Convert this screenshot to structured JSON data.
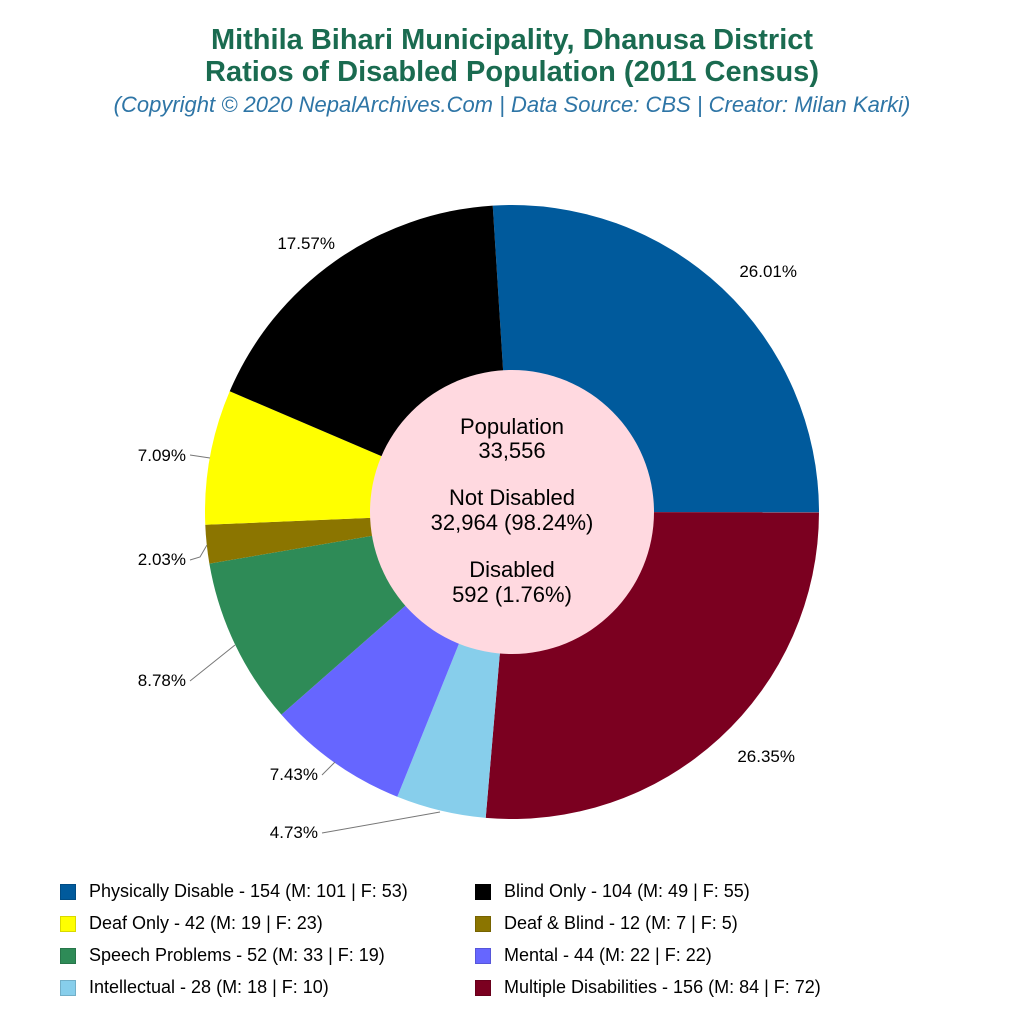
{
  "header": {
    "title_line1": "Mithila Bihari Municipality, Dhanusa District",
    "title_line2": "Ratios of Disabled Population (2011 Census)",
    "subtitle": "(Copyright © 2020 NepalArchives.Com | Data Source: CBS | Creator: Milan Karki)"
  },
  "center": {
    "population_label": "Population",
    "population_value": "33,556",
    "not_disabled_label": "Not Disabled",
    "not_disabled_value": "32,964 (98.24%)",
    "disabled_label": "Disabled",
    "disabled_value": "592 (1.76%)"
  },
  "slices": [
    {
      "name": "Physically Disable",
      "value": 154,
      "pct": "26.01%",
      "color": "#005a9c"
    },
    {
      "name": "Multiple Disabilities",
      "value": 156,
      "pct": "26.35%",
      "color": "#7b0020"
    },
    {
      "name": "Intellectual",
      "value": 28,
      "pct": "4.73%",
      "color": "#87ceeb"
    },
    {
      "name": "Mental",
      "value": 44,
      "pct": "7.43%",
      "color": "#6666ff"
    },
    {
      "name": "Speech Problems",
      "value": 52,
      "pct": "8.78%",
      "color": "#2e8b57"
    },
    {
      "name": "Deaf & Blind",
      "value": 12,
      "pct": "2.03%",
      "color": "#8b7500"
    },
    {
      "name": "Deaf Only",
      "value": 42,
      "pct": "7.09%",
      "color": "#ffff00"
    },
    {
      "name": "Blind Only",
      "value": 104,
      "pct": "17.57%",
      "color": "#000000"
    }
  ],
  "legend": [
    {
      "label": "Physically Disable - 154 (M: 101 | F: 53)",
      "color": "#005a9c"
    },
    {
      "label": "Blind Only - 104 (M: 49 | F: 55)",
      "color": "#000000"
    },
    {
      "label": "Deaf Only - 42 (M: 19 | F: 23)",
      "color": "#ffff00"
    },
    {
      "label": "Deaf & Blind - 12 (M: 7 | F: 5)",
      "color": "#8b7500"
    },
    {
      "label": "Speech Problems - 52 (M: 33 | F: 19)",
      "color": "#2e8b57"
    },
    {
      "label": "Mental - 44 (M: 22 | F: 22)",
      "color": "#6666ff"
    },
    {
      "label": "Intellectual - 28 (M: 18 | F: 10)",
      "color": "#87ceeb"
    },
    {
      "label": "Multiple Disabilities - 156 (M: 84 | F: 72)",
      "color": "#7b0020"
    }
  ],
  "chart_data": {
    "type": "pie",
    "donut": true,
    "title": "Mithila Bihari Municipality, Dhanusa District — Ratios of Disabled Population (2011 Census)",
    "subtitle": "(Copyright © 2020 NepalArchives.Com | Data Source: CBS | Creator: Milan Karki)",
    "categories": [
      "Physically Disable",
      "Multiple Disabilities",
      "Intellectual",
      "Mental",
      "Speech Problems",
      "Deaf & Blind",
      "Deaf Only",
      "Blind Only"
    ],
    "values": [
      154,
      156,
      28,
      44,
      52,
      12,
      42,
      104
    ],
    "percentages": [
      26.01,
      26.35,
      4.73,
      7.43,
      8.78,
      2.03,
      7.09,
      17.57
    ],
    "male": [
      101,
      84,
      18,
      22,
      33,
      7,
      19,
      49
    ],
    "female": [
      53,
      72,
      10,
      22,
      19,
      5,
      23,
      55
    ],
    "colors": [
      "#005a9c",
      "#7b0020",
      "#87ceeb",
      "#6666ff",
      "#2e8b57",
      "#8b7500",
      "#ffff00",
      "#000000"
    ],
    "center_annotation": {
      "population": 33556,
      "not_disabled": 32964,
      "not_disabled_pct": 98.24,
      "disabled": 592,
      "disabled_pct": 1.76
    },
    "legend_position": "bottom"
  }
}
